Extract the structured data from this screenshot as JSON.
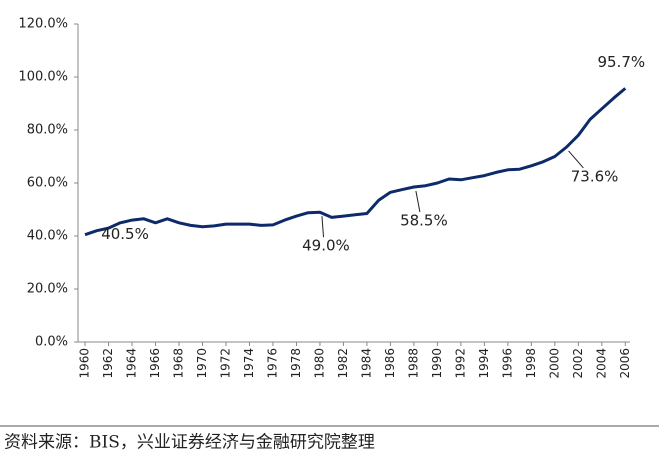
{
  "chart_data": {
    "type": "line",
    "x": [
      1960,
      1961,
      1962,
      1963,
      1964,
      1965,
      1966,
      1967,
      1968,
      1969,
      1970,
      1971,
      1972,
      1973,
      1974,
      1975,
      1976,
      1977,
      1978,
      1979,
      1980,
      1981,
      1982,
      1983,
      1984,
      1985,
      1986,
      1987,
      1988,
      1989,
      1990,
      1991,
      1992,
      1993,
      1994,
      1995,
      1996,
      1997,
      1998,
      1999,
      2000,
      2001,
      2002,
      2003,
      2004,
      2005,
      2006
    ],
    "values": [
      40.5,
      42,
      43,
      45,
      46,
      46.5,
      45,
      46.5,
      45,
      44,
      43.5,
      43.8,
      44.5,
      44.5,
      44.5,
      44,
      44.2,
      46,
      47.5,
      48.8,
      49.0,
      47,
      47.5,
      48,
      48.5,
      53.5,
      56.5,
      57.5,
      58.5,
      59,
      60,
      61.5,
      61.2,
      62,
      62.8,
      64,
      65,
      65.2,
      66.5,
      68,
      70,
      73.6,
      78,
      84,
      88,
      92,
      95.7
    ],
    "value_labels": [
      "40.5%",
      null,
      null,
      null,
      null,
      null,
      null,
      null,
      null,
      null,
      null,
      null,
      null,
      null,
      null,
      null,
      null,
      null,
      null,
      null,
      "49.0%",
      null,
      null,
      null,
      null,
      null,
      null,
      null,
      "58.5%",
      null,
      null,
      null,
      null,
      null,
      null,
      null,
      null,
      null,
      null,
      null,
      null,
      "73.6%",
      null,
      null,
      null,
      null,
      "95.7%"
    ],
    "color": "#0d2a6b",
    "xlim": [
      1959.4,
      2006.4
    ],
    "xticks": [
      1960,
      1962,
      1964,
      1966,
      1968,
      1970,
      1972,
      1974,
      1976,
      1978,
      1980,
      1982,
      1984,
      1986,
      1988,
      1990,
      1992,
      1994,
      1996,
      1998,
      2000,
      2002,
      2004,
      2006
    ],
    "ylim": [
      0,
      120
    ],
    "yticks": [
      {
        "value": 0,
        "label": "0.0%"
      },
      {
        "value": 20,
        "label": "20.0%"
      },
      {
        "value": 40,
        "label": "40.0%"
      },
      {
        "value": 60,
        "label": "60.0%"
      },
      {
        "value": 80,
        "label": "80.0%"
      },
      {
        "value": 100,
        "label": "100.0%"
      },
      {
        "value": 120,
        "label": "120.0%"
      }
    ],
    "grid": false,
    "source": "资料来源：BIS，兴业证券经济与金融研究院整理"
  }
}
